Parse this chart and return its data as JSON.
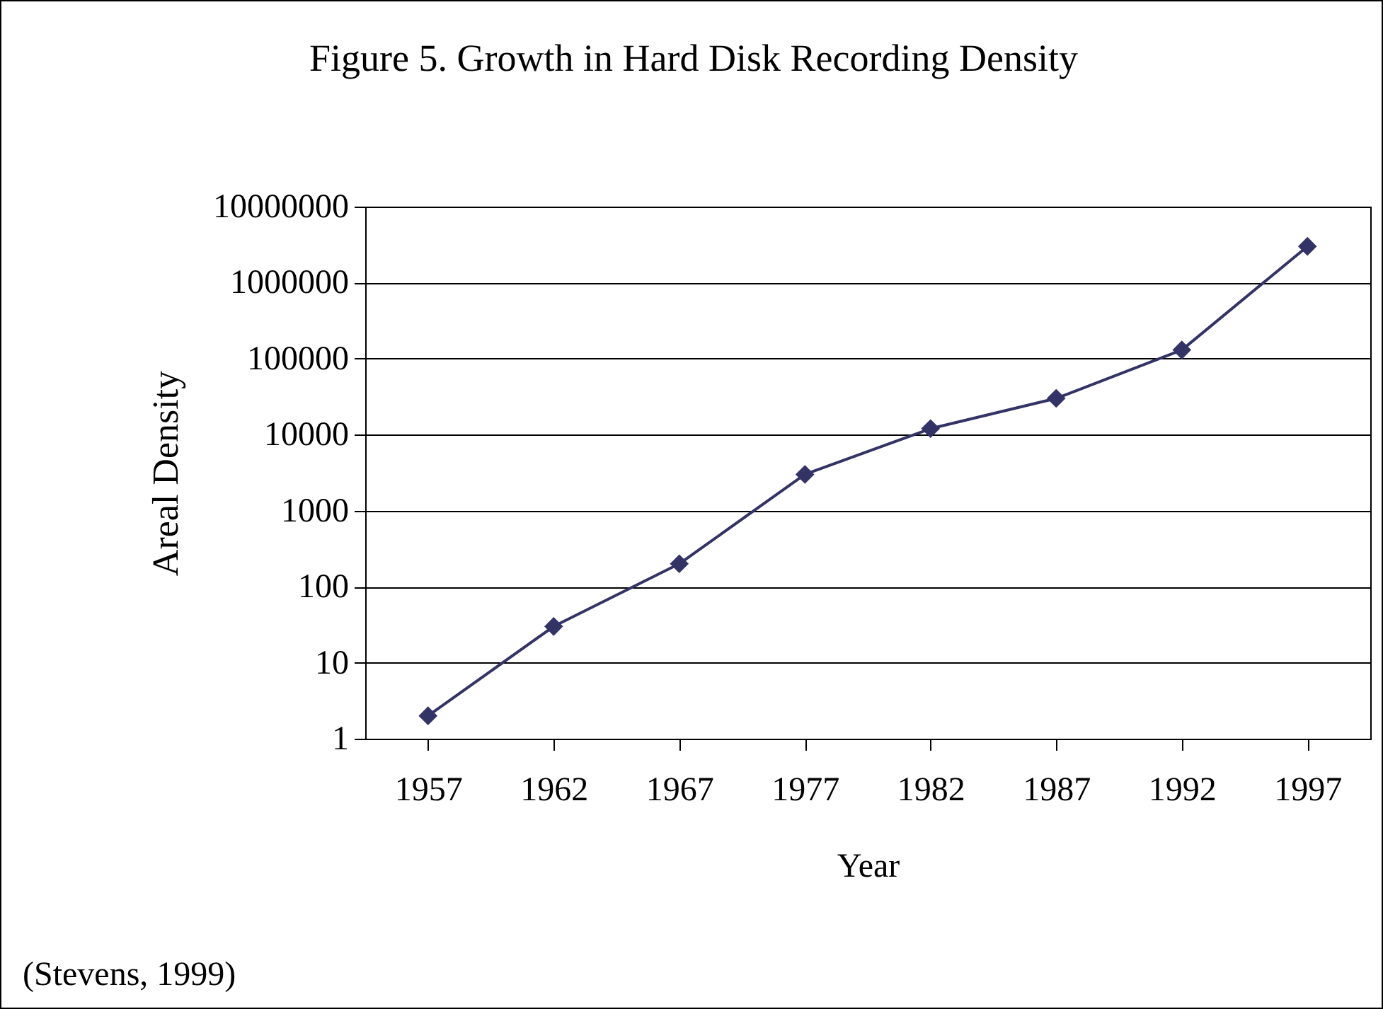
{
  "chart_data": {
    "type": "line",
    "title": "Figure 5. Growth in Hard Disk Recording Density",
    "xlabel": "Year",
    "ylabel": "Areal Density",
    "categories": [
      "1957",
      "1962",
      "1967",
      "1977",
      "1982",
      "1987",
      "1992",
      "1997"
    ],
    "series": [
      {
        "color": "#333366",
        "values": [
          2,
          30,
          200,
          3000,
          12000,
          30000,
          130000,
          3000000
        ]
      }
    ],
    "log": "y",
    "ylim": [
      1,
      10000000
    ],
    "yticks": [
      1,
      10,
      100,
      1000,
      10000,
      100000,
      1000000,
      10000000
    ],
    "grid": "y",
    "marker": "diamond",
    "annotations": [
      "(Stevens, 1999)"
    ]
  }
}
